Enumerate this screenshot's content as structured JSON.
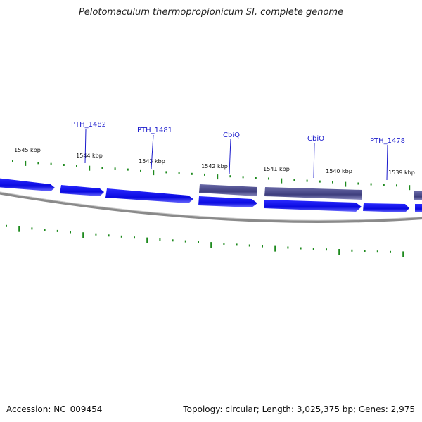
{
  "header": {
    "title": "Pelotomaculum thermopropionicum SI, complete genome"
  },
  "footer": {
    "accession": "Accession: NC_009454",
    "summary": "Topology: circular; Length: 3,025,375 bp; Genes: 2,975"
  },
  "map": {
    "colors": {
      "forward_gene": "#1010e8",
      "highlighted_gene": "#4a4a8a",
      "backbone": "#8a8a8a",
      "ticks": "#1e8a1e",
      "gene_label": "#1a1acc",
      "gene_label_line": "#1a1acc"
    },
    "kbp_labels": [
      "1545 kbp",
      "1544 kbp",
      "1543 kbp",
      "1542 kbp",
      "1541 kbp",
      "1540 kbp",
      "1539 kbp"
    ],
    "gene_labels": [
      "PTH_1482",
      "PTH_1481",
      "CbiQ",
      "CbiO",
      "PTH_1478"
    ]
  }
}
